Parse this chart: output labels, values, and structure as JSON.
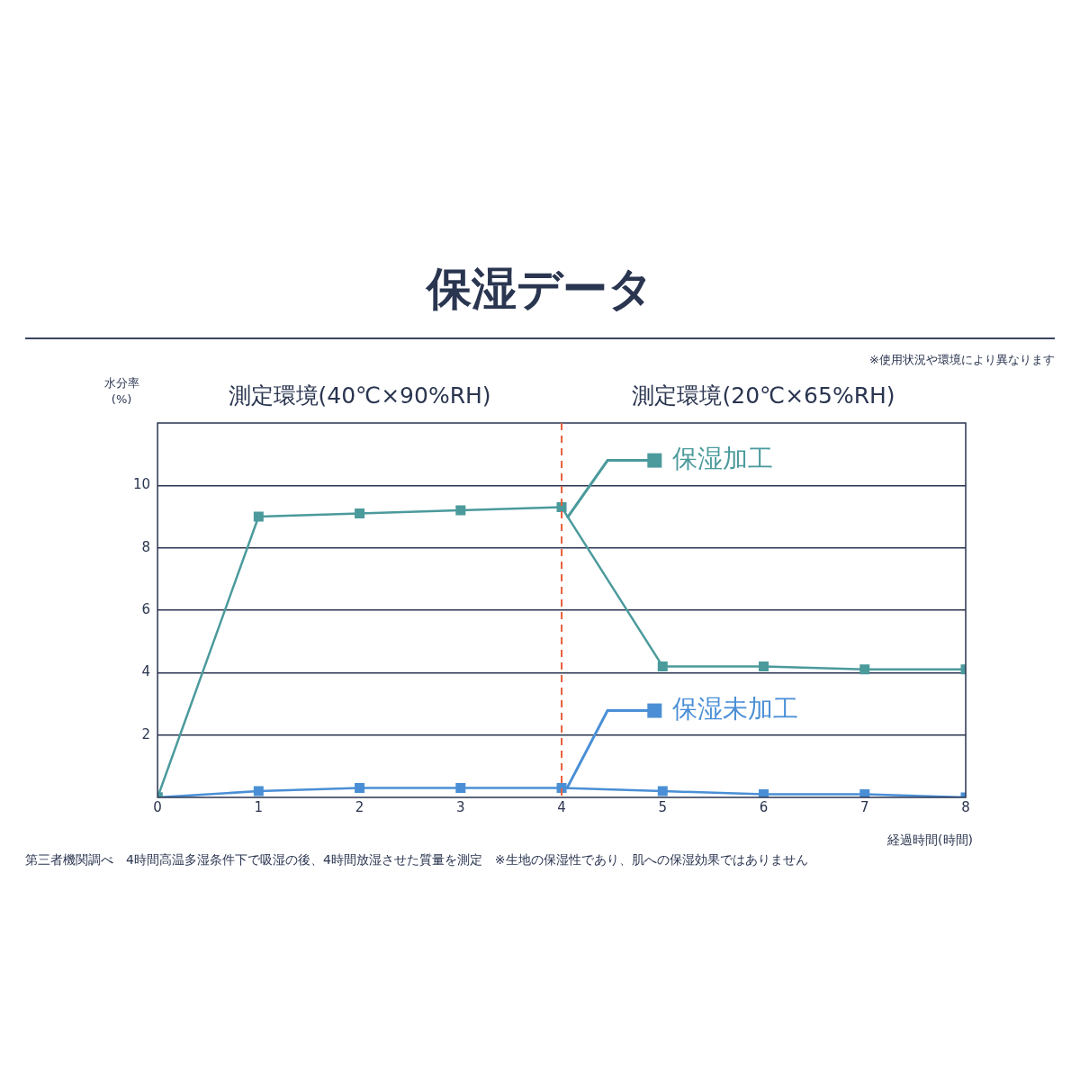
{
  "chart_data": {
    "type": "line",
    "title": "保湿データ",
    "ylabel": "水分率\n(%)",
    "xlabel": "経過時間(時間)",
    "annotations": [
      "※使用状況や環境により異なります",
      "測定環境(40℃×90%RH)",
      "測定環境(20℃×65%RH)",
      "第三者機関調べ　4時間高温多湿条件下で吸湿の後、4時間放湿させた質量を測定　※生地の保湿性であり、肌への保湿効果ではありません"
    ],
    "x": [
      0,
      1,
      2,
      3,
      4,
      5,
      6,
      7,
      8
    ],
    "series": [
      {
        "name": "保湿加工",
        "color": "#4b9a9c",
        "values": [
          0,
          9.0,
          9.1,
          9.2,
          9.3,
          4.2,
          4.2,
          4.1,
          4.1
        ]
      },
      {
        "name": "保湿未加工",
        "color": "#4a8fd6",
        "values": [
          0,
          0.2,
          0.3,
          0.3,
          0.3,
          0.2,
          0.1,
          0.1,
          0
        ]
      }
    ],
    "xlim": [
      0,
      8
    ],
    "xticks": [
      0,
      1,
      2,
      3,
      4,
      5,
      6,
      7,
      8
    ],
    "ylim": [
      0,
      12
    ],
    "yticks": [
      2,
      4,
      6,
      8,
      10
    ],
    "ref_lines": [
      {
        "axis": "x",
        "value": 4,
        "color": "#e8603c",
        "line_style": "dashed"
      }
    ],
    "grid": "y",
    "legend": "top right",
    "marker": "square",
    "line_style": "solid"
  }
}
